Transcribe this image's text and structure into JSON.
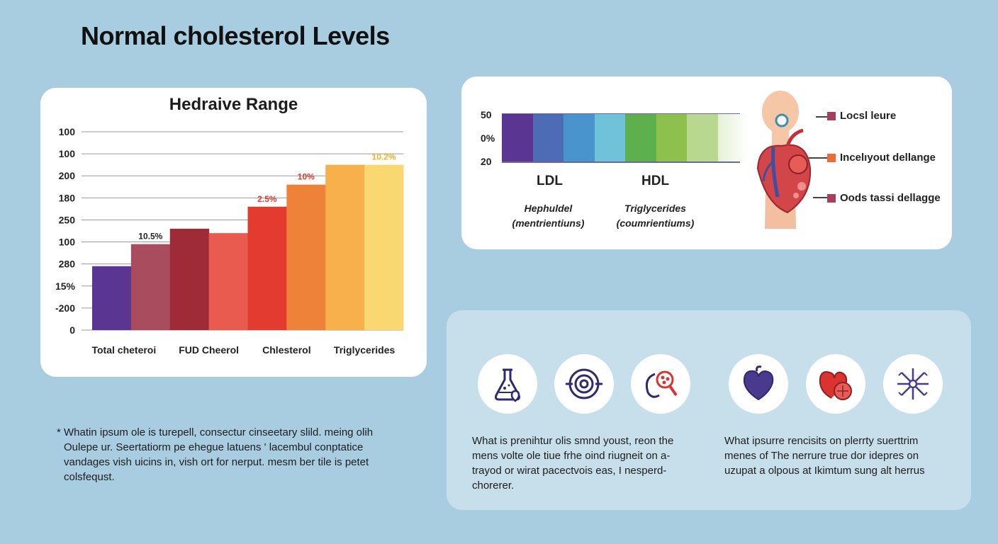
{
  "page_title": "Normal cholesterol Levels",
  "chart_data": {
    "type": "bar",
    "title": "Hedraive Range",
    "yticks": [
      "100",
      "100",
      "200",
      "180",
      "250",
      "100",
      "280",
      "15%",
      "-200",
      "0"
    ],
    "xlabels": [
      "Total cheteroi",
      "FUD Cheerol",
      "Chlesterol",
      "Triglycerides"
    ],
    "ylim": [
      0,
      9
    ],
    "values": [
      2.9,
      3.9,
      4.6,
      4.4,
      5.6,
      6.6,
      7.5,
      7.5
    ],
    "colors": [
      "#5b3592",
      "#a84c5e",
      "#9e2b35",
      "#ea5b4f",
      "#e43b30",
      "#ee8239",
      "#f7b04c",
      "#f9d771"
    ],
    "data_labels": [
      {
        "bar": 1,
        "text": "10.5%",
        "color": "#222222"
      },
      {
        "bar": 4,
        "text": "2.5%",
        "color": "#e03a2c"
      },
      {
        "bar": 5,
        "text": "10%",
        "color": "#e03a2c"
      },
      {
        "bar": 7,
        "text": "10.2%",
        "color": "#f2b21f"
      }
    ],
    "grid": true
  },
  "scale_card": {
    "axis": [
      "50",
      "0%",
      "20"
    ],
    "colors": [
      "#5b3592",
      "#4e6bb6",
      "#4a94cd",
      "#6fc2d8",
      "#5db04b",
      "#8ec04e",
      "#b7d88e",
      "#e4f1d6"
    ],
    "labels": {
      "ldl": "LDL",
      "hdl": "HDL"
    },
    "sub_left": [
      "Hephuldel",
      "(mentrientiuns)"
    ],
    "sub_right": [
      "Triglycerides",
      "(coumrientiums)"
    ],
    "legend": [
      {
        "label": "Locsl leure",
        "color": "#a63f5a"
      },
      {
        "label": "Incelıyout dellange",
        "color": "#ee6a38"
      },
      {
        "label": "Oods tassi dellagge",
        "color": "#a63f5a"
      }
    ]
  },
  "footnote": [
    "* Whatin ipsum ole is turepell, consectur cinseetary slild. meing olih",
    "Oulepe ur. Seertatiorm pe ehegue latuens ' lacembul conptatice",
    "vandages vish uicins in, vish ort for nerput. mesm ber tile is petet",
    "colsfequst."
  ],
  "icon_names": [
    "flask-heart-icon",
    "target-rings-icon",
    "magnifier-molecule-icon",
    "heart-icon",
    "heart-cells-icon",
    "cell-network-icon"
  ],
  "desc_left": [
    "What is prenihtur olis smnd  youst, reon the",
    "mens volte ole tiue frhe oind riugneit on a-",
    "trayod or wirat pacectvois eas, I nesperd-",
    "chorerer."
  ],
  "desc_right": [
    "What ipsurre rencisits on plerrty suerttrim",
    "menes of The nerrure true dor idepres on",
    "uzupat a olpous at Ikimtum sung alt herrus"
  ]
}
